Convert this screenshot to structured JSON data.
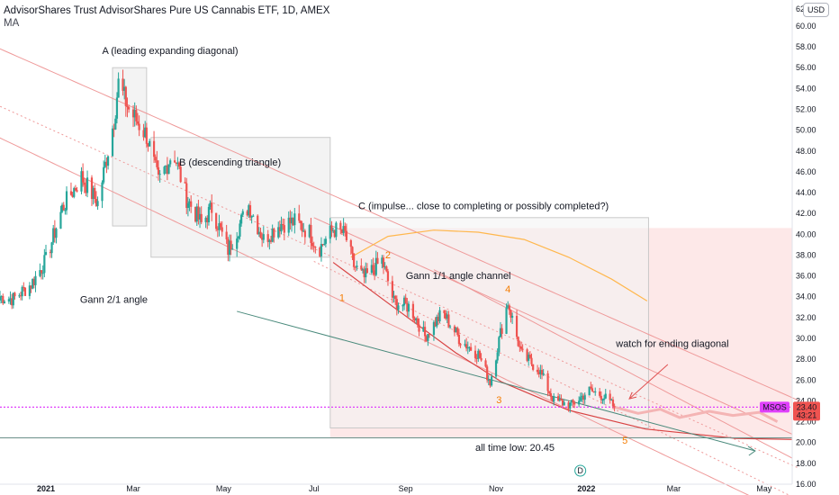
{
  "header": {
    "title": "AdvisorShares Trust AdvisorShares Pure US Cannabis ETF, 1D, AMEX",
    "indicator": "MA",
    "currency": "USD"
  },
  "colors": {
    "up": "#26a69a",
    "down": "#ef5350",
    "ma": "#ffb74d",
    "channel": "#ef9a9a",
    "gann21": "#4a8a7c",
    "price_line": "#e040fb",
    "wave_label": "#f57c00",
    "box_fill": "#f2f2f2",
    "pink_zone": "#fde4e4"
  },
  "chart_data": {
    "type": "candlestick",
    "symbol": "MSOS",
    "interval": "1D",
    "x_axis": {
      "type": "date",
      "range": [
        "2020-12-01",
        "2022-05-20"
      ],
      "ticks": [
        "2021",
        "Mar",
        "May",
        "Jul",
        "Sep",
        "Nov",
        "2022",
        "Mar",
        "May"
      ]
    },
    "y_axis": {
      "range": [
        16,
        62.5
      ],
      "position": "right",
      "ticks": [
        "16.00",
        "18.00",
        "20.00",
        "22.00",
        "24.00",
        "26.00",
        "28.00",
        "30.00",
        "32.00",
        "34.00",
        "36.00",
        "38.00",
        "40.00",
        "42.00",
        "44.00",
        "46.00",
        "48.00",
        "50.00",
        "52.00",
        "54.00",
        "56.00",
        "58.00",
        "60.00",
        "62"
      ]
    },
    "anchors": [
      [
        "2020-12-01",
        34.0
      ],
      [
        "2020-12-10",
        33.8
      ],
      [
        "2020-12-22",
        35.2
      ],
      [
        "2021-01-01",
        37.5
      ],
      [
        "2021-01-12",
        42.5
      ],
      [
        "2021-01-25",
        45.5
      ],
      [
        "2021-02-05",
        43.0
      ],
      [
        "2021-02-16",
        51.0
      ],
      [
        "2021-02-19",
        54.5
      ],
      [
        "2021-02-26",
        52.0
      ],
      [
        "2021-03-10",
        49.5
      ],
      [
        "2021-03-18",
        45.0
      ],
      [
        "2021-03-28",
        48.0
      ],
      [
        "2021-04-06",
        43.5
      ],
      [
        "2021-04-16",
        41.0
      ],
      [
        "2021-04-23",
        42.5
      ],
      [
        "2021-05-04",
        38.5
      ],
      [
        "2021-05-18",
        42.8
      ],
      [
        "2021-05-28",
        39.5
      ],
      [
        "2021-06-08",
        41.0
      ],
      [
        "2021-06-18",
        41.2
      ],
      [
        "2021-06-28",
        40.2
      ],
      [
        "2021-07-04",
        38.5
      ],
      [
        "2021-07-14",
        40.5
      ],
      [
        "2021-07-22",
        40.0
      ],
      [
        "2021-07-28",
        37.0
      ],
      [
        "2021-08-04",
        35.8
      ],
      [
        "2021-08-16",
        37.5
      ],
      [
        "2021-08-24",
        33.5
      ],
      [
        "2021-09-04",
        33.0
      ],
      [
        "2021-09-14",
        30.2
      ],
      [
        "2021-09-26",
        32.5
      ],
      [
        "2021-10-08",
        29.8
      ],
      [
        "2021-10-20",
        28.5
      ],
      [
        "2021-10-28",
        25.8
      ],
      [
        "2021-11-04",
        30.5
      ],
      [
        "2021-11-09",
        33.5
      ],
      [
        "2021-11-18",
        28.5
      ],
      [
        "2021-11-30",
        27.0
      ],
      [
        "2021-12-10",
        24.0
      ],
      [
        "2021-12-22",
        23.6
      ],
      [
        "2022-01-03",
        25.0
      ],
      [
        "2022-01-12",
        24.5
      ],
      [
        "2022-01-20",
        23.4
      ]
    ],
    "last_price": 23.4,
    "countdown": "43:21",
    "moving_average": [
      [
        "2021-07-26",
        37.8
      ],
      [
        "2021-08-20",
        39.8
      ],
      [
        "2021-09-20",
        40.4
      ],
      [
        "2021-10-20",
        40.2
      ],
      [
        "2021-11-20",
        39.5
      ],
      [
        "2021-12-20",
        37.8
      ],
      [
        "2022-01-18",
        35.7
      ],
      [
        "2022-02-11",
        33.6
      ]
    ],
    "annotations": {
      "box_a": "A (leading expanding diagonal)",
      "box_b": "B (descending triangle)",
      "box_c": "C (impulse... close to completing or possibly completed?)",
      "gann_channel": "Gann 1/1 angle channel",
      "gann_21": "Gann 2/1 angle",
      "ending_diagonal": "watch for ending diagonal",
      "all_time_low": "all time low: 20.45",
      "waves": [
        "1",
        "2",
        "3",
        "4",
        "5"
      ]
    },
    "boxes": [
      {
        "from": "2021-02-15",
        "to": "2021-03-10",
        "low": 40.8,
        "high": 56.0
      },
      {
        "from": "2021-03-13",
        "to": "2021-07-12",
        "low": 37.8,
        "high": 49.3
      },
      {
        "from": "2021-07-12",
        "to": "2022-02-12",
        "low": 21.4,
        "high": 41.6
      }
    ],
    "all_time_low_line": 20.45,
    "grid": false,
    "legend": "none"
  }
}
